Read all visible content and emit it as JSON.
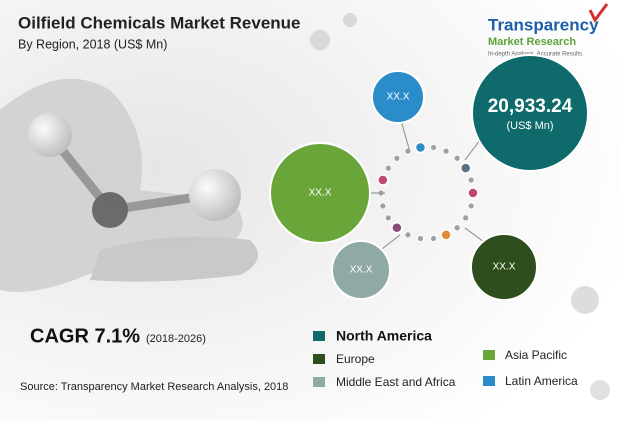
{
  "header": {
    "title": "Oilfield Chemicals Market Revenue",
    "subtitle": "By Region, 2018 (US$ Mn)"
  },
  "logo": {
    "name": "Transparency",
    "line2": "Market Research",
    "tagline": "In-depth Analysis. Accurate Results."
  },
  "bubbles": [
    {
      "label": "20,933.24",
      "unit": "(US$ Mn)"
    },
    {
      "label": "XX.X"
    },
    {
      "label": "XX.X"
    },
    {
      "label": "XX.X"
    },
    {
      "label": "XX.X"
    }
  ],
  "cagr": {
    "label": "CAGR 7.1%",
    "period": "(2018-2026)"
  },
  "legend": [
    "North America",
    "Europe",
    "Middle East and Africa",
    "Asia Pacific",
    "Latin America"
  ],
  "source": "Source: Transparency Market Research Analysis, 2018"
}
